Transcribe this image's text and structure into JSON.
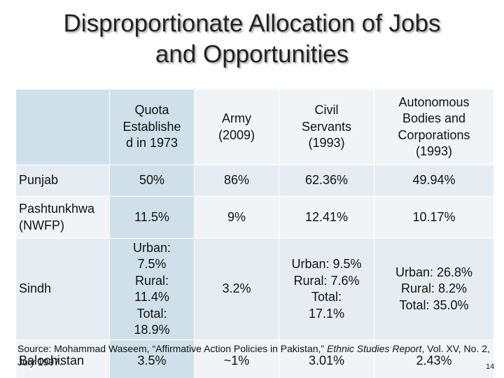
{
  "title": [
    "Disproportionate Allocation of Jobs",
    "and Opportunities"
  ],
  "table": {
    "header": [
      [],
      [
        "Quota",
        "Establishe",
        "d in 1973"
      ],
      [
        "Army",
        "(2009)"
      ],
      [
        "Civil",
        "Servants",
        "(1993)"
      ],
      [
        "Autonomous",
        "Bodies and",
        "Corporations",
        "(1993)"
      ]
    ],
    "rows": [
      [
        [
          "Punjab"
        ],
        [
          "50%"
        ],
        [
          "86%"
        ],
        [
          "62.36%"
        ],
        [
          "49.94%"
        ]
      ],
      [
        [
          "Pashtunkhwa",
          "(NWFP)"
        ],
        [
          "11.5%"
        ],
        [
          "9%"
        ],
        [
          "12.41%"
        ],
        [
          "10.17%"
        ]
      ],
      [
        [
          "Sindh"
        ],
        [
          "Urban:",
          "7.5%",
          "Rural:",
          "11.4%",
          "Total:",
          "18.9%"
        ],
        [
          "3.2%"
        ],
        [
          "Urban:  9.5%",
          "Rural:  7.6%",
          "Total:",
          "17.1%"
        ],
        [
          "Urban:  26.8%",
          "Rural:   8.2%",
          "Total:   35.0%"
        ]
      ],
      [
        [
          "Balochistan"
        ],
        [
          "3.5%"
        ],
        [
          "~1%"
        ],
        [
          "3.01%"
        ],
        [
          "2.43%"
        ]
      ]
    ]
  },
  "source": {
    "prefix": "Source:  Mohammad Waseem, “Affirmative Action Policies in Pakistan,” ",
    "journal": "Ethnic Studies Report",
    "suffix": ", Vol. XV, No. 2, July 1997."
  },
  "page_number": "14"
}
